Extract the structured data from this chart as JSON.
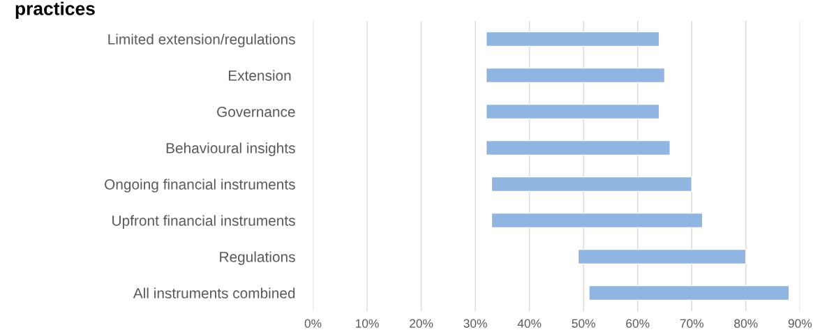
{
  "chart_data": {
    "type": "bar",
    "orientation": "horizontal",
    "title": "practices",
    "categories": [
      "Limited extension/regulations",
      "Extension ",
      "Governance",
      "Behavioural insights",
      "Ongoing financial instruments",
      "Upfront financial instruments",
      "Regulations",
      "All instruments combined"
    ],
    "series": [
      {
        "color": "#8fb5e0",
        "base": [
          32,
          32,
          32,
          32,
          33,
          33,
          49,
          51
        ],
        "values": [
          32,
          33,
          32,
          34,
          37,
          39,
          31,
          37
        ]
      }
    ],
    "xlim": [
      0,
      90
    ],
    "xticks": [
      {
        "value": 0,
        "label": "0%"
      },
      {
        "value": 10,
        "label": "10%"
      },
      {
        "value": 20,
        "label": "20%"
      },
      {
        "value": 30,
        "label": "30%"
      },
      {
        "value": 40,
        "label": "40%"
      },
      {
        "value": 50,
        "label": "50%"
      },
      {
        "value": 60,
        "label": "60%"
      },
      {
        "value": 70,
        "label": "70%"
      },
      {
        "value": 80,
        "label": "80%"
      },
      {
        "value": 90,
        "label": "90%"
      }
    ],
    "grid": "x"
  }
}
